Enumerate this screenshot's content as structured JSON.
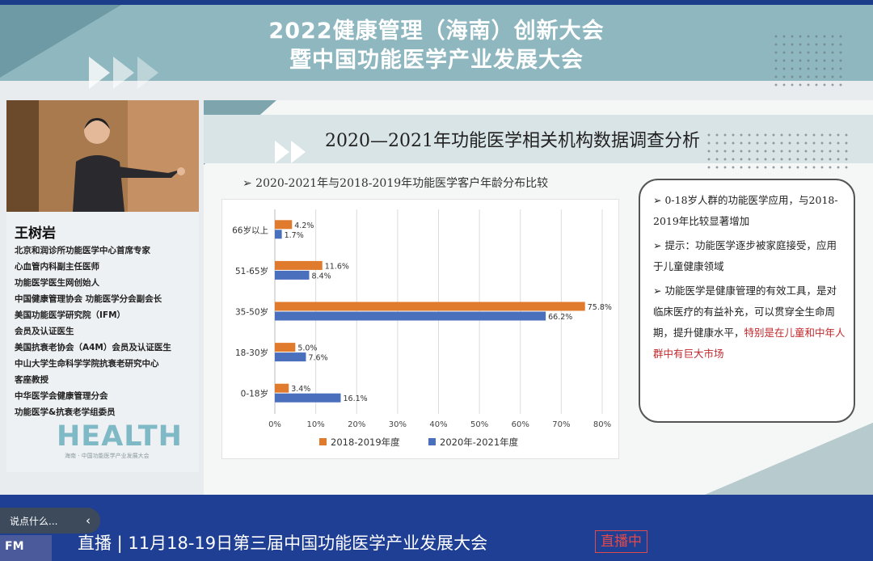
{
  "banner": {
    "title_line1": "2022健康管理（海南）创新大会",
    "title_line2": "暨中国功能医学产业发展大会"
  },
  "speaker": {
    "name": "王树岩",
    "titles": [
      "北京和润诊所功能医学中心首席专家",
      "心血管内科副主任医师",
      "功能医学医生网创始人",
      "中国健康管理协会 功能医学分会副会长",
      "美国功能医学研究院（IFM）",
      "会员及认证医生",
      "美国抗衰老协会（A4M）会员及认证医生",
      "中山大学生命科学学院抗衰老研究中心",
      "客座教授",
      "中华医学会健康管理分会",
      "功能医学&抗衰老学组委员"
    ],
    "logo_text": "HEALTH",
    "logo_sub": "海南 · 中国功能医学产业发展大会"
  },
  "slide": {
    "title": "2020—2021年功能医学相关机构数据调查分析",
    "chart_subtitle": "➢  2020-2021年与2018-2019年功能医学客户年龄分布比较",
    "notes": [
      {
        "text": "0-18岁人群的功能医学应用，与2018-2019年比较显著增加",
        "highlight": ""
      },
      {
        "text": "提示：功能医学逐步被家庭接受，应用于儿童健康领域",
        "highlight": ""
      },
      {
        "text": "功能医学是健康管理的有效工具，是对临床医疗的有益补充，可以贯穿全生命周期，提升健康水平，",
        "highlight": "特别是在儿童和中年人群中有巨大市场"
      }
    ]
  },
  "chart_data": {
    "type": "bar",
    "orientation": "horizontal",
    "categories": [
      "66岁以上",
      "51-65岁",
      "35-50岁",
      "18-30岁",
      "0-18岁"
    ],
    "series": [
      {
        "name": "2018-2019年度",
        "color": "#e07b2e",
        "values": [
          4.2,
          11.6,
          75.8,
          5.0,
          3.4
        ]
      },
      {
        "name": "2020年-2021年度",
        "color": "#4a6fbd",
        "values": [
          1.7,
          8.4,
          66.2,
          7.6,
          16.1
        ]
      }
    ],
    "xlim": [
      0,
      80
    ],
    "xticks": [
      "0%",
      "10%",
      "20%",
      "30%",
      "40%",
      "50%",
      "60%",
      "70%",
      "80%"
    ],
    "grid": true,
    "legend": "bottom"
  },
  "bottom": {
    "comment_placeholder": "说点什么...",
    "toggle_icon": "‹",
    "fm_logo": "FM",
    "live_title": "直播 | 11月18-19日第三届中国功能医学产业发展大会",
    "live_badge": "直播中"
  }
}
